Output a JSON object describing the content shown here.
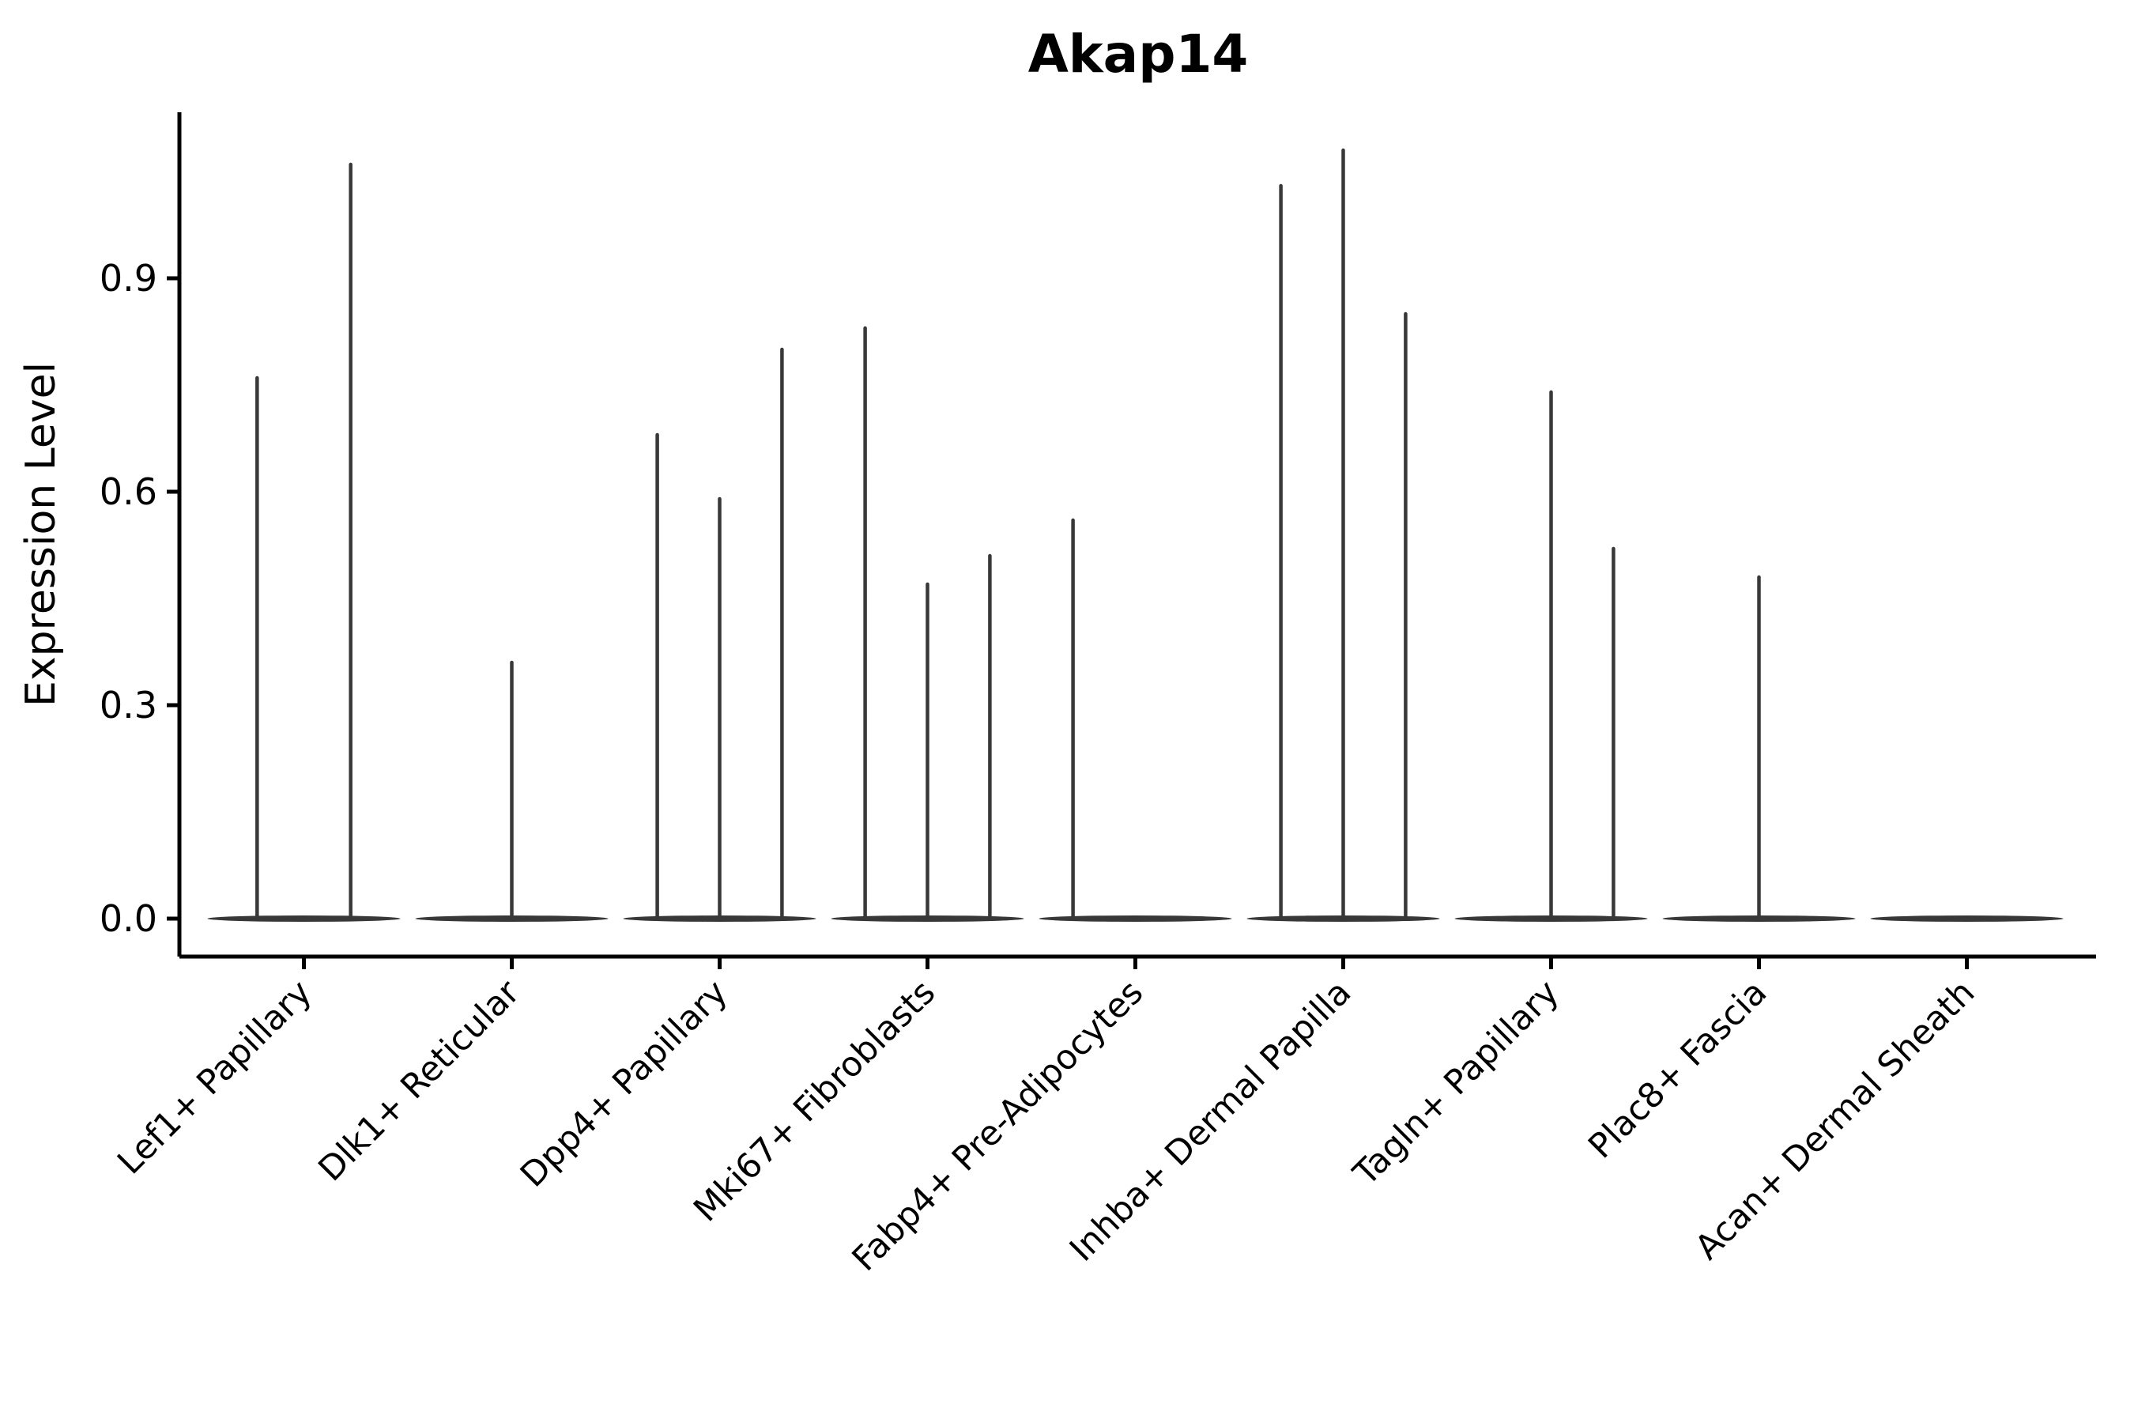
{
  "figure": {
    "background": "#ffffff"
  },
  "chart_data": {
    "type": "violin",
    "title": "Akap14",
    "ylabel": "Expression Level",
    "xlabel": "",
    "grid": false,
    "legend": null,
    "axis_color": "#000000",
    "violin_color": "#383838",
    "ylim": [
      -0.05,
      1.13
    ],
    "yticks": [
      0.0,
      0.3,
      0.6,
      0.9
    ],
    "ytick_labels": [
      "0.0",
      "0.3",
      "0.6",
      "0.9"
    ],
    "categories": [
      {
        "label": "Lef1+ Papillary",
        "violins": [
          {
            "offset": -0.225,
            "max": 0.76
          },
          {
            "offset": 0.225,
            "max": 1.06
          }
        ]
      },
      {
        "label": "Dlk1+ Reticular",
        "violins": [
          {
            "offset": 0.0,
            "max": 0.36
          }
        ]
      },
      {
        "label": "Dpp4+ Papillary",
        "violins": [
          {
            "offset": -0.3,
            "max": 0.68
          },
          {
            "offset": 0.0,
            "max": 0.59
          },
          {
            "offset": 0.3,
            "max": 0.8
          }
        ]
      },
      {
        "label": "Mki67+ Fibroblasts",
        "violins": [
          {
            "offset": -0.3,
            "max": 0.83
          },
          {
            "offset": 0.0,
            "max": 0.47
          },
          {
            "offset": 0.3,
            "max": 0.51
          }
        ]
      },
      {
        "label": "Fabp4+ Pre-Adipocytes",
        "violins": [
          {
            "offset": -0.3,
            "max": 0.56
          }
        ]
      },
      {
        "label": "Inhba+ Dermal Papilla",
        "violins": [
          {
            "offset": -0.3,
            "max": 1.03
          },
          {
            "offset": 0.0,
            "max": 1.08
          },
          {
            "offset": 0.3,
            "max": 0.85
          }
        ]
      },
      {
        "label": "Tagln+ Papillary",
        "violins": [
          {
            "offset": 0.0,
            "max": 0.74
          },
          {
            "offset": 0.3,
            "max": 0.52
          }
        ]
      },
      {
        "label": "Plac8+ Fascia",
        "violins": [
          {
            "offset": 0.0,
            "max": 0.48
          }
        ]
      },
      {
        "label": "Acan+ Dermal Sheath",
        "violins": []
      }
    ]
  }
}
